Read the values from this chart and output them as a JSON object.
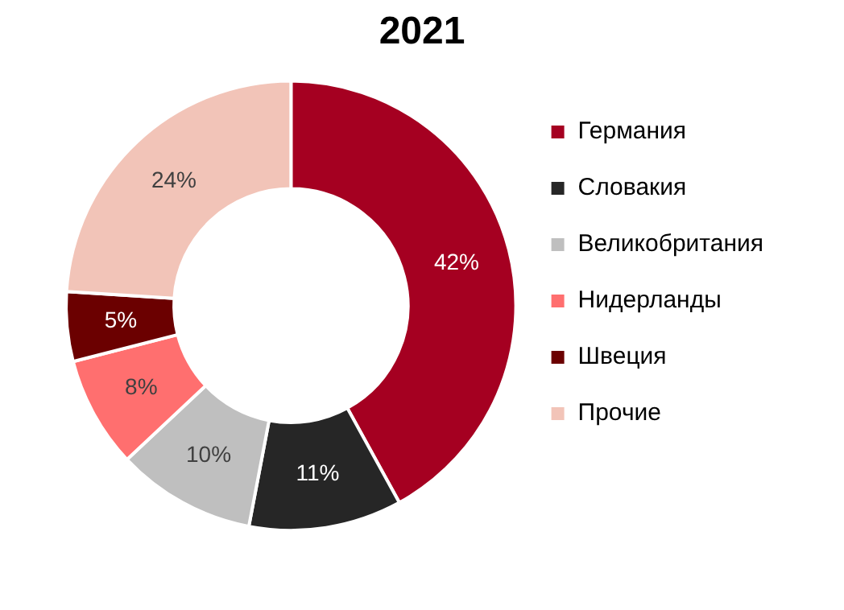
{
  "chart_data": {
    "type": "donut",
    "title": "2021",
    "categories": [
      "Германия",
      "Словакия",
      "Великобритания",
      "Нидерланды",
      "Швеция",
      "Прочие"
    ],
    "values": [
      42,
      11,
      10,
      8,
      5,
      24
    ],
    "colors": [
      "#a50021",
      "#262626",
      "#bfbfbf",
      "#ff6f6f",
      "#6b0000",
      "#f2c4b8"
    ],
    "value_labels": [
      "42%",
      "11%",
      "10%",
      "8%",
      "5%",
      "24%"
    ],
    "legend": "right"
  }
}
